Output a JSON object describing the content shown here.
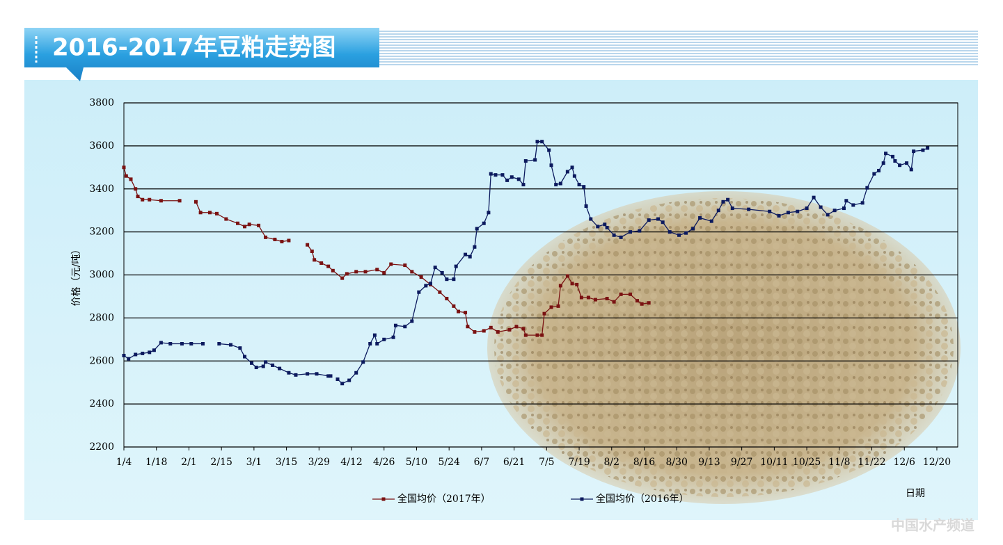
{
  "chart_data": {
    "type": "line",
    "title": "2016-2017年豆粕走势图",
    "y_label": "价格（元/吨）",
    "x_label": "日期",
    "watermark": "中国水产频道",
    "ylim": [
      2200,
      3800
    ],
    "yticks": [
      2200,
      2400,
      2600,
      2800,
      3000,
      3200,
      3400,
      3600,
      3800
    ],
    "xlim": [
      0,
      359
    ],
    "xticks": [
      {
        "value": 0,
        "label": "1/4"
      },
      {
        "value": 14,
        "label": "1/18"
      },
      {
        "value": 28,
        "label": "2/1"
      },
      {
        "value": 42,
        "label": "2/15"
      },
      {
        "value": 56,
        "label": "3/1"
      },
      {
        "value": 70,
        "label": "3/15"
      },
      {
        "value": 84,
        "label": "3/29"
      },
      {
        "value": 98,
        "label": "4/12"
      },
      {
        "value": 112,
        "label": "4/26"
      },
      {
        "value": 126,
        "label": "5/10"
      },
      {
        "value": 140,
        "label": "5/24"
      },
      {
        "value": 154,
        "label": "6/7"
      },
      {
        "value": 168,
        "label": "6/21"
      },
      {
        "value": 182,
        "label": "7/5"
      },
      {
        "value": 196,
        "label": "7/19"
      },
      {
        "value": 210,
        "label": "8/2"
      },
      {
        "value": 224,
        "label": "8/16"
      },
      {
        "value": 238,
        "label": "8/30"
      },
      {
        "value": 252,
        "label": "9/13"
      },
      {
        "value": 266,
        "label": "9/27"
      },
      {
        "value": 280,
        "label": "10/11"
      },
      {
        "value": 294,
        "label": "10/25"
      },
      {
        "value": 308,
        "label": "11/8"
      },
      {
        "value": 322,
        "label": "11/22"
      },
      {
        "value": 336,
        "label": "12/6"
      },
      {
        "value": 350,
        "label": "12/20"
      }
    ],
    "grid": true,
    "legend": "bottom",
    "series": [
      {
        "name": "全国均价（2017年）",
        "color": "#7a1212",
        "x": [
          0,
          1,
          3,
          5,
          6,
          8,
          11,
          16,
          24,
          27,
          31,
          33,
          37,
          40,
          44,
          49,
          52,
          54,
          58,
          61,
          65,
          68,
          71,
          73,
          79,
          81,
          82,
          85,
          88,
          90,
          94,
          96,
          100,
          104,
          109,
          112,
          115,
          121,
          124,
          128,
          132,
          136,
          139,
          142,
          144,
          147,
          148,
          151,
          155,
          158,
          161,
          166,
          169,
          172,
          173,
          178,
          180,
          181,
          184,
          187,
          188,
          191,
          193,
          195,
          197,
          200,
          203,
          208,
          211,
          214,
          218,
          221,
          223,
          226
        ],
        "values": [
          3500,
          3460,
          3445,
          3400,
          3365,
          3350,
          3350,
          3345,
          3345,
          null,
          3340,
          3290,
          3290,
          3285,
          3260,
          3240,
          3225,
          3235,
          3230,
          3175,
          3165,
          3155,
          3160,
          null,
          3140,
          3110,
          3070,
          3055,
          3040,
          3020,
          2985,
          3005,
          3015,
          3015,
          3025,
          3010,
          3050,
          3045,
          3015,
          2990,
          2955,
          2920,
          2890,
          2855,
          2830,
          2825,
          2760,
          2735,
          2740,
          2755,
          2735,
          2745,
          2760,
          2750,
          2720,
          2720,
          2720,
          2820,
          2850,
          2855,
          2950,
          2995,
          2960,
          2955,
          2895,
          2895,
          2885,
          2890,
          2875,
          2910,
          2910,
          2880,
          2865,
          2870
        ]
      },
      {
        "name": "全国均价（2016年）",
        "color": "#0c1a5e",
        "x": [
          0,
          2,
          5,
          8,
          11,
          13,
          16,
          20,
          25,
          29,
          34,
          36,
          41,
          46,
          50,
          52,
          55,
          57,
          60,
          61,
          64,
          67,
          71,
          74,
          79,
          83,
          88,
          89,
          91,
          92,
          94,
          97,
          100,
          103,
          106,
          108,
          109,
          112,
          116,
          117,
          121,
          124,
          127,
          130,
          132,
          134,
          137,
          139,
          142,
          143,
          147,
          149,
          151,
          152,
          155,
          157,
          158,
          160,
          163,
          165,
          167,
          170,
          172,
          173,
          177,
          178,
          180,
          183,
          184,
          186,
          188,
          191,
          193,
          194,
          196,
          198,
          199,
          201,
          204,
          207,
          208,
          211,
          214,
          218,
          222,
          226,
          230,
          232,
          235,
          239,
          242,
          245,
          248,
          253,
          256,
          258,
          260,
          262,
          269,
          278,
          282,
          286,
          290,
          294,
          297,
          300,
          303,
          306,
          310,
          311,
          314,
          318,
          320,
          323,
          325,
          327,
          328,
          331,
          332,
          334,
          337,
          339,
          340,
          344,
          346
        ],
        "values": [
          2625,
          2610,
          2630,
          2635,
          2640,
          2650,
          2685,
          2680,
          2680,
          2680,
          2680,
          null,
          2680,
          2675,
          2660,
          2620,
          2590,
          2570,
          2575,
          2595,
          2580,
          2565,
          2545,
          2535,
          2540,
          2540,
          2530,
          2530,
          null,
          2515,
          2495,
          2510,
          2545,
          2595,
          2680,
          2720,
          2680,
          2700,
          2710,
          2765,
          2760,
          2785,
          2920,
          2950,
          2960,
          3035,
          3010,
          2980,
          2980,
          3040,
          3095,
          3085,
          3130,
          3215,
          3240,
          3290,
          3470,
          3465,
          3465,
          3440,
          3455,
          3445,
          3420,
          3530,
          3535,
          3620,
          3620,
          3580,
          3510,
          3420,
          3425,
          3480,
          3500,
          3460,
          3420,
          3410,
          3320,
          3260,
          3225,
          3235,
          3220,
          3185,
          3175,
          3200,
          3205,
          3255,
          3260,
          3245,
          3200,
          3185,
          3195,
          3215,
          3265,
          3250,
          3300,
          3340,
          3350,
          3310,
          3305,
          3295,
          3275,
          3290,
          3295,
          3310,
          3360,
          3315,
          3280,
          3300,
          3310,
          3345,
          3325,
          3335,
          3405,
          3470,
          3485,
          3520,
          3565,
          3550,
          3530,
          3510,
          3520,
          3490,
          3575,
          3580,
          3590
        ]
      }
    ]
  }
}
